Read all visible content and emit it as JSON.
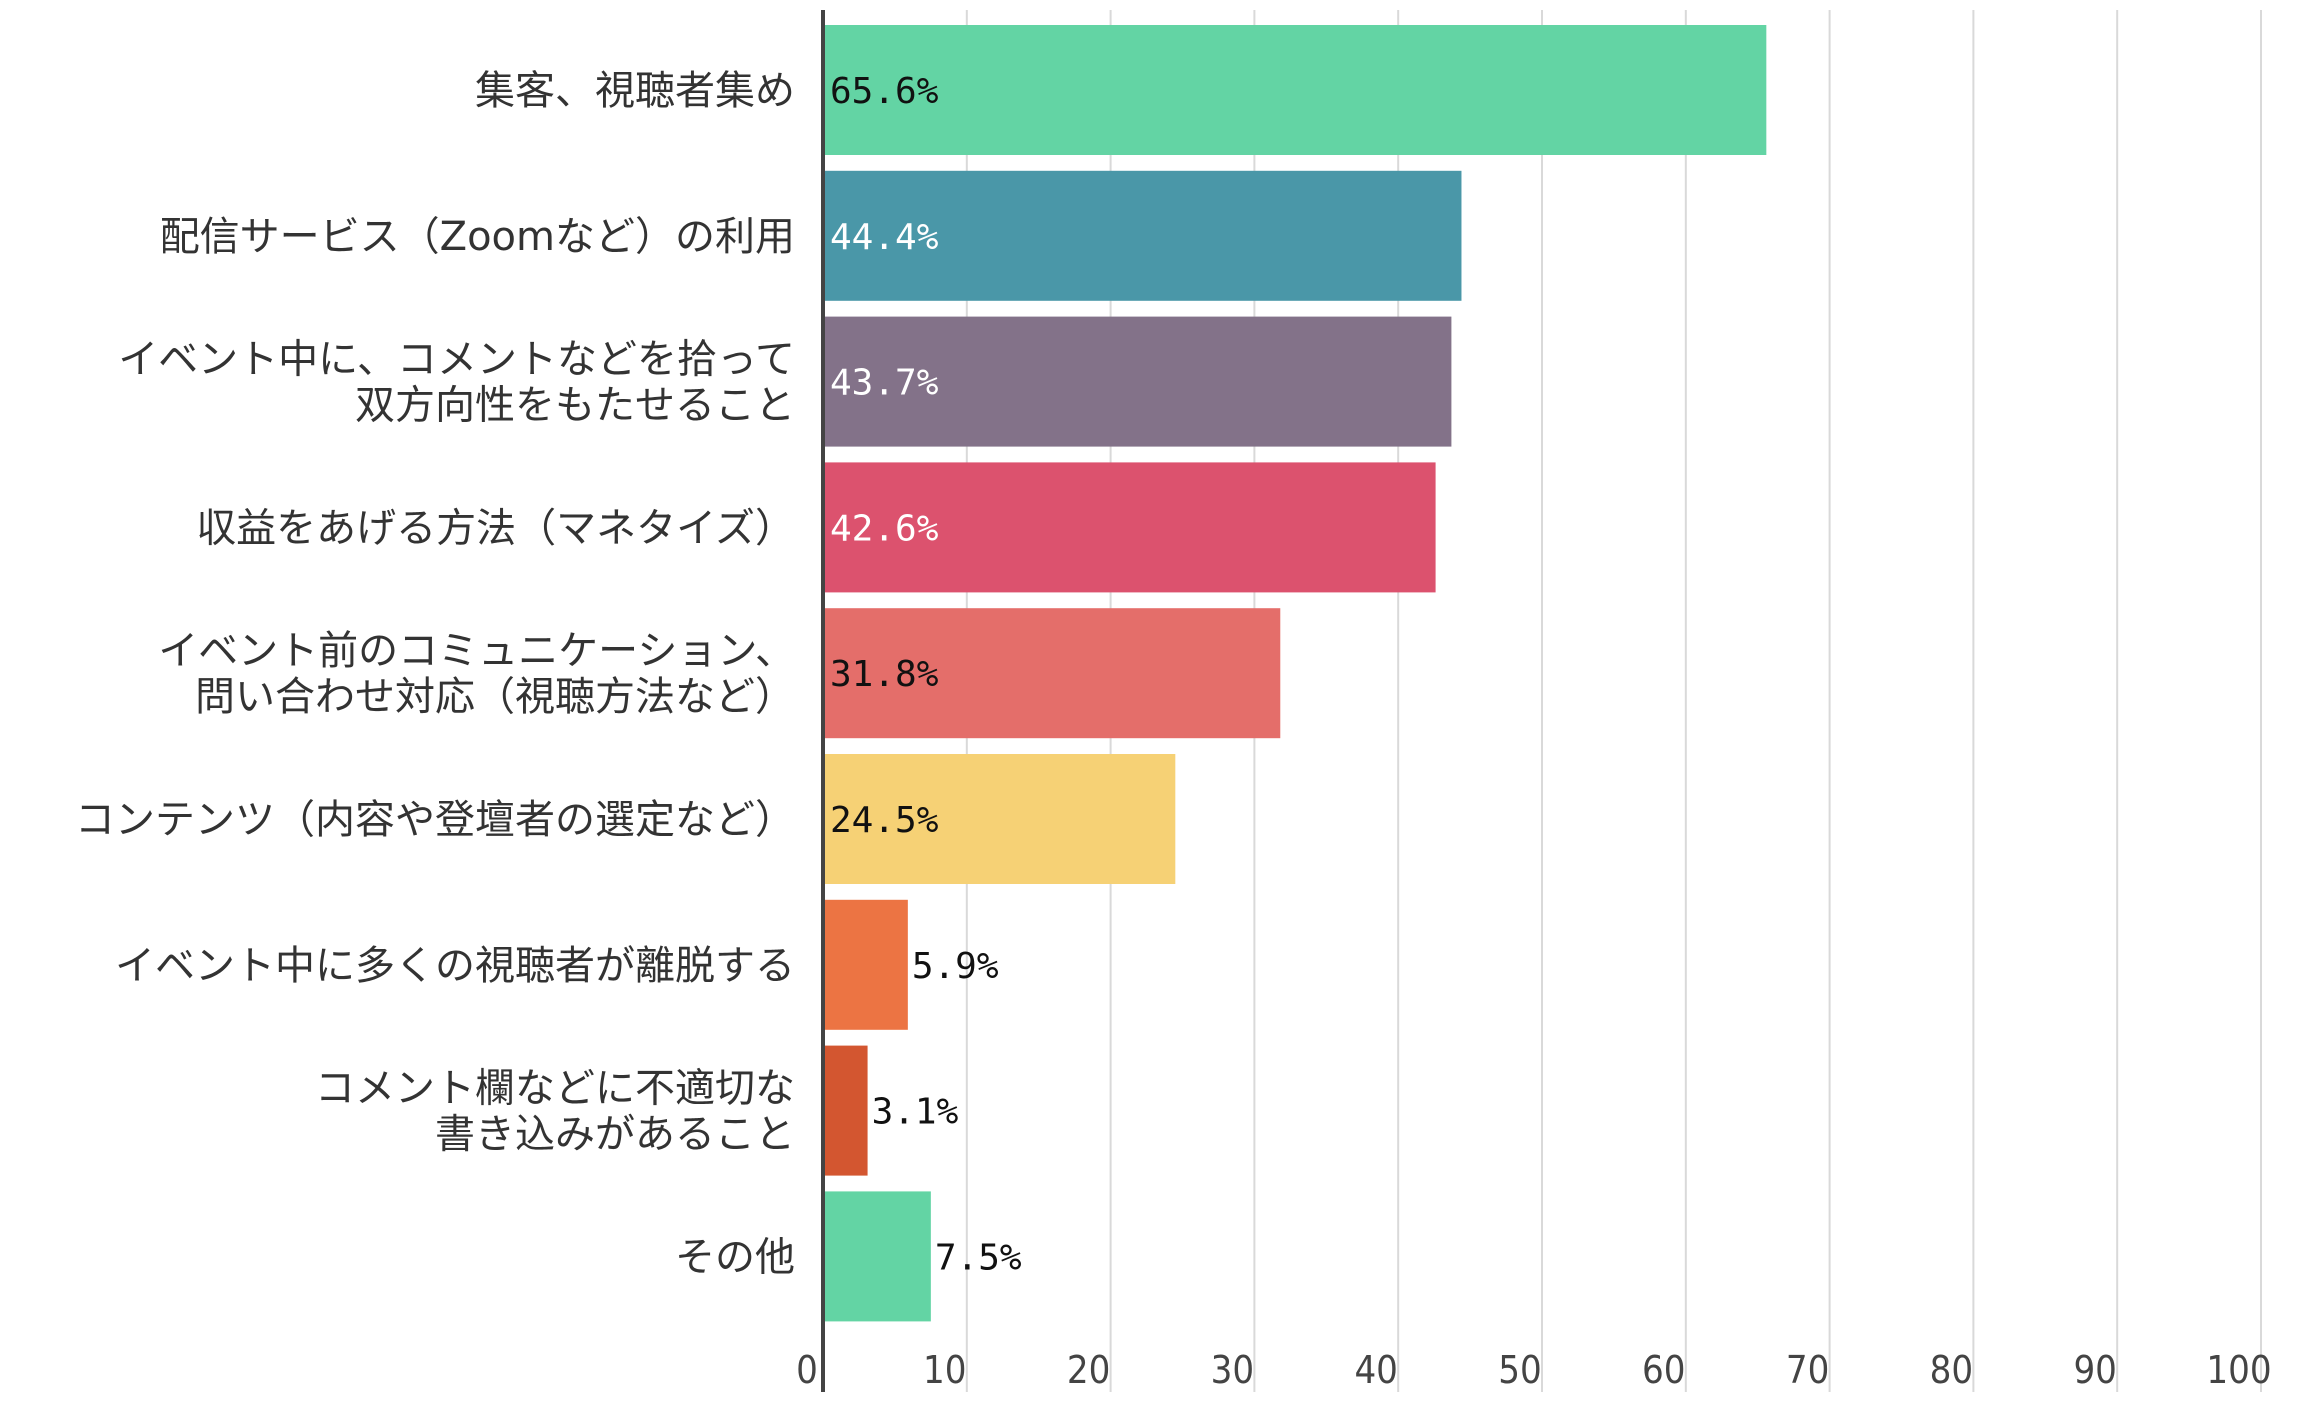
{
  "chart_data": {
    "type": "bar",
    "orientation": "horizontal",
    "categories": [
      [
        "集客、視聴者集め"
      ],
      [
        "配信サービス（Zoomなど）の利用"
      ],
      [
        "イベント中に、コメントなどを拾って",
        "双方向性をもたせること"
      ],
      [
        "収益をあげる方法（マネタイズ）"
      ],
      [
        "イベント前のコミュニケーション、",
        "問い合わせ対応（視聴方法など）"
      ],
      [
        "コンテンツ（内容や登壇者の選定など）"
      ],
      [
        "イベント中に多くの視聴者が離脱する"
      ],
      [
        "コメント欄などに不適切な",
        "書き込みがあること"
      ],
      [
        "その他"
      ]
    ],
    "values": [
      65.6,
      44.4,
      43.7,
      42.6,
      31.8,
      24.5,
      5.9,
      3.1,
      7.5
    ],
    "data_labels": [
      "65.6%",
      "44.4%",
      "43.7%",
      "42.6%",
      "31.8%",
      "24.5%",
      "5.9%",
      "3.1%",
      "7.5%"
    ],
    "bar_colors": [
      "#63d4a4",
      "#4a97a8",
      "#837289",
      "#dc526e",
      "#e46e6a",
      "#f6d175",
      "#ec7443",
      "#d35630",
      "#63d4a4"
    ],
    "label_colors": [
      "#111111",
      "#ffffff",
      "#ffffff",
      "#ffffff",
      "#111111",
      "#111111",
      "#111111",
      "#111111",
      "#111111"
    ],
    "xlim": [
      0,
      100
    ],
    "xticks": [
      "0",
      "10",
      "20",
      "30",
      "40",
      "50",
      "60",
      "70",
      "80",
      "90",
      "100"
    ],
    "grid": true,
    "title": "",
    "xlabel": "",
    "ylabel": ""
  }
}
